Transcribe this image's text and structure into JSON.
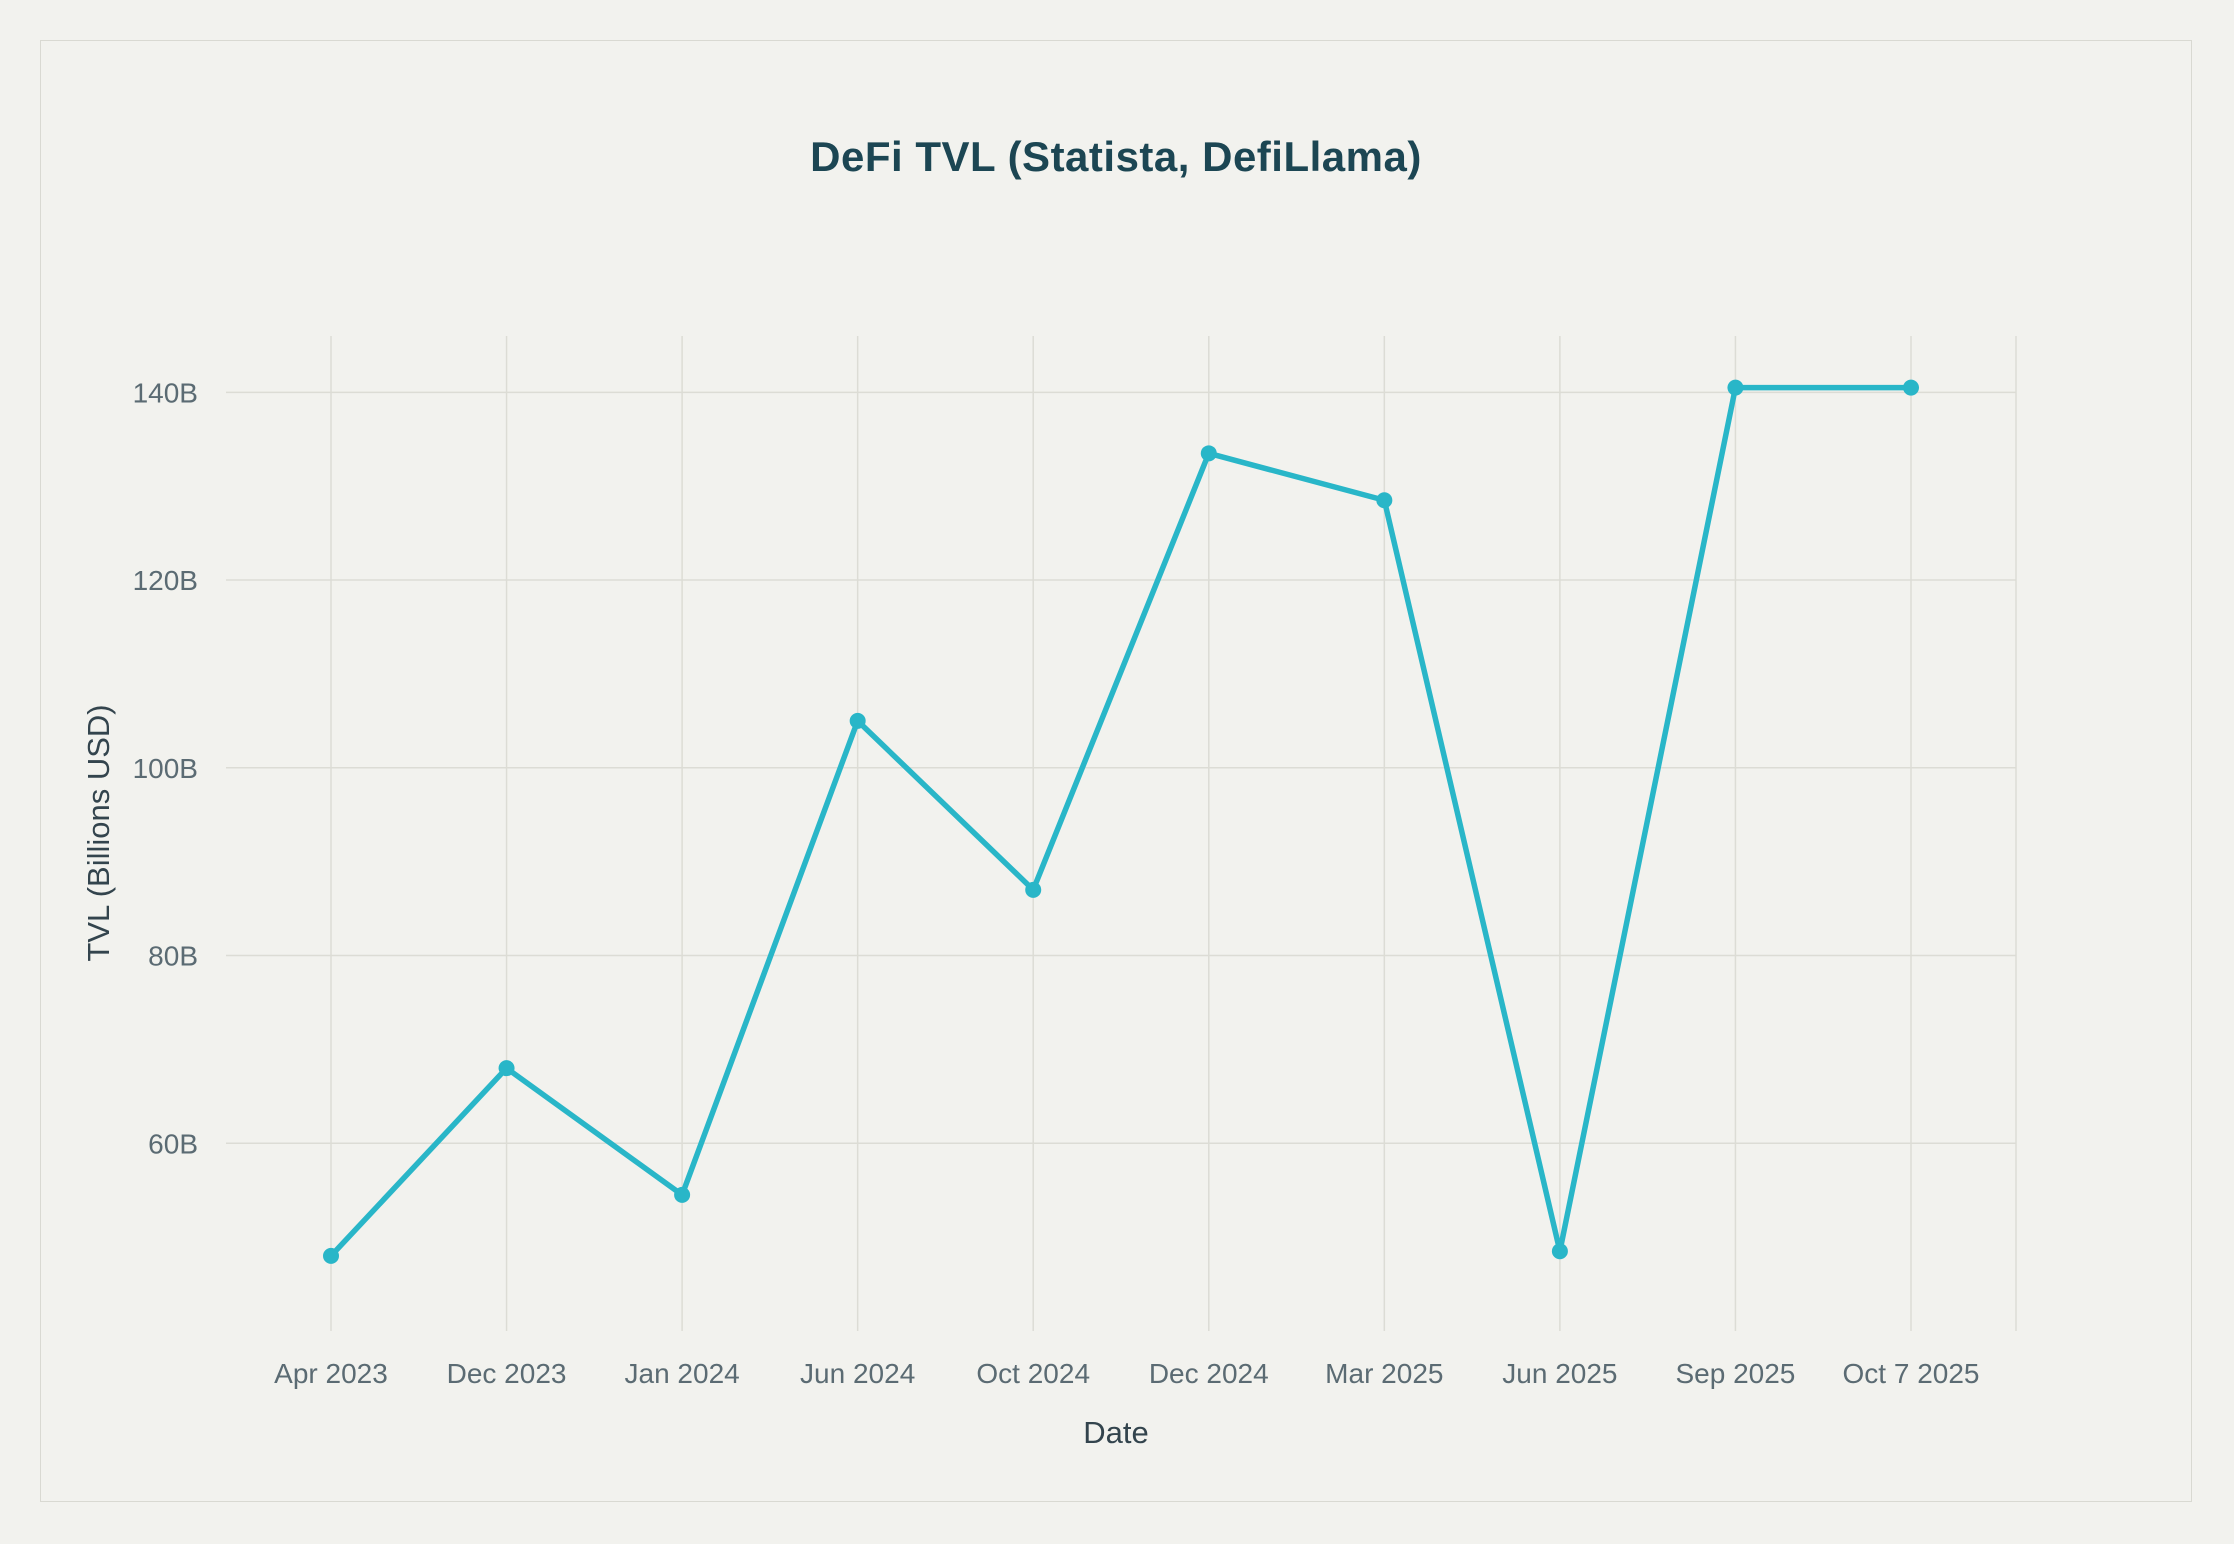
{
  "chart_data": {
    "type": "line",
    "title": "DeFi TVL (Statista, DefiLlama)",
    "xlabel": "Date",
    "ylabel": "TVL (Billions USD)",
    "categories": [
      "Apr 2023",
      "Dec 2023",
      "Jan 2024",
      "Jun 2024",
      "Oct 2024",
      "Dec 2024",
      "Mar 2025",
      "Jun 2025",
      "Sep 2025",
      "Oct 7 2025"
    ],
    "series": [
      {
        "name": "DeFi TVL",
        "values": [
          48,
          68,
          54.5,
          105,
          87,
          133.5,
          128.5,
          48.5,
          140.5,
          140.5
        ]
      }
    ],
    "ytick_values": [
      60,
      80,
      100,
      120,
      140
    ],
    "ytick_labels": [
      "60B",
      "80B",
      "100B",
      "120B",
      "140B"
    ],
    "ylim": [
      40,
      146
    ],
    "grid": true,
    "legend_position": "none",
    "marker": "circle"
  },
  "colors": {
    "background": "#f2f2ee",
    "card_border": "#d9d9d2",
    "title": "#1c4653",
    "tick": "#5b6b73",
    "grid": "#dcdcd5",
    "axis_label": "#33444d",
    "line": "#29b6c8"
  }
}
